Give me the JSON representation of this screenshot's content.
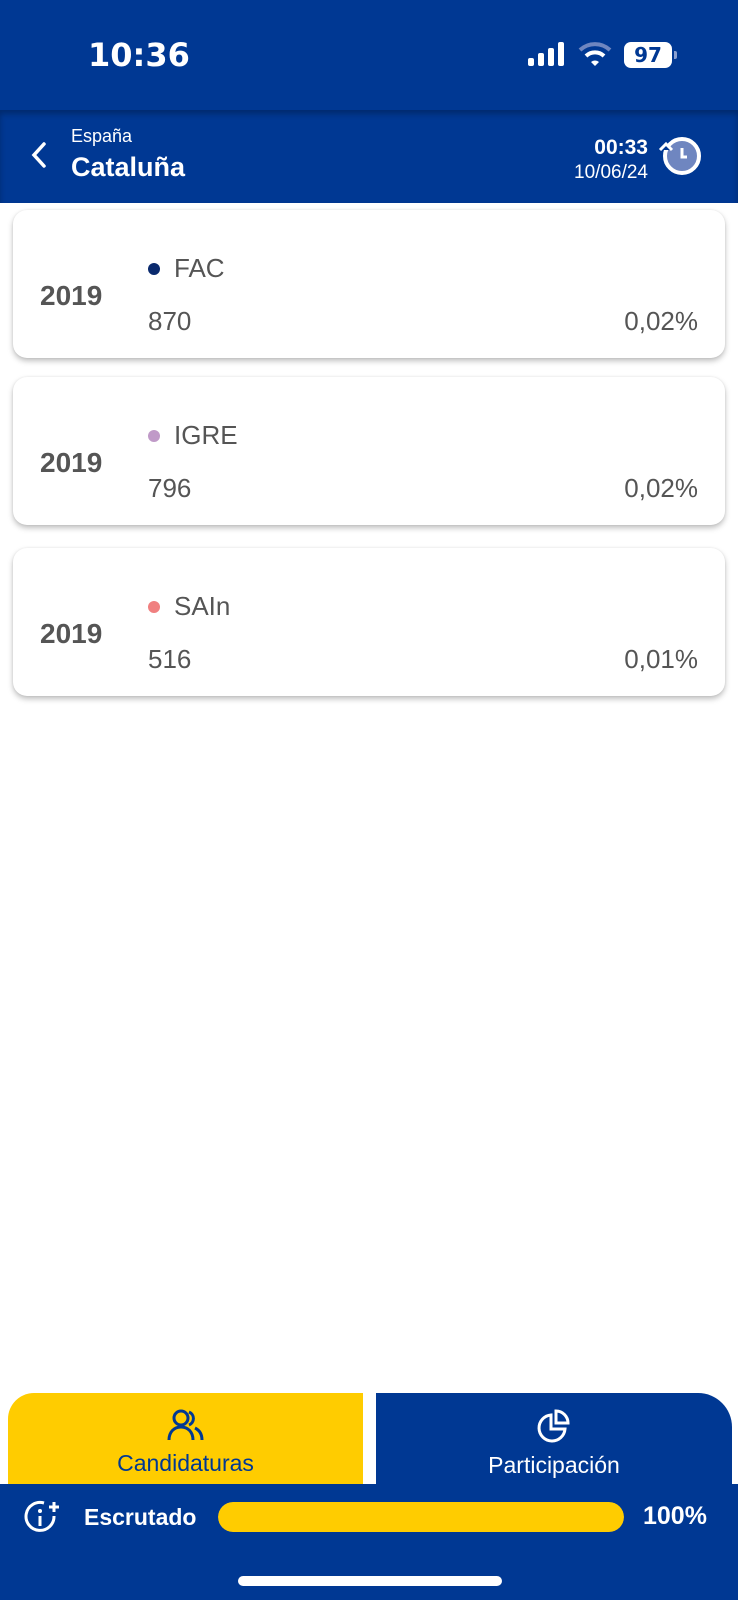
{
  "status_bar": {
    "time": "10:36",
    "battery": "97"
  },
  "header": {
    "breadcrumb": "España",
    "title": "Cataluña",
    "last_update_time": "00:33",
    "last_update_date": "10/06/24"
  },
  "results": [
    {
      "year": "2019",
      "party": "FAC",
      "votes": "870",
      "percent": "0,02%",
      "color": "#0a2a6e"
    },
    {
      "year": "2019",
      "party": "IGRE",
      "votes": "796",
      "percent": "0,02%",
      "color": "#c09ac8"
    },
    {
      "year": "2019",
      "party": "SAIn",
      "votes": "516",
      "percent": "0,01%",
      "color": "#f08080"
    }
  ],
  "tabs": [
    {
      "label": "Candidaturas",
      "icon": "users-icon",
      "active": true
    },
    {
      "label": "Participación",
      "icon": "pie-chart-icon",
      "active": false
    }
  ],
  "footer": {
    "label": "Escrutado",
    "progress_percent": 100,
    "progress_text": "100%"
  },
  "colors": {
    "brand": "#003893",
    "accent": "#ffcc00"
  }
}
